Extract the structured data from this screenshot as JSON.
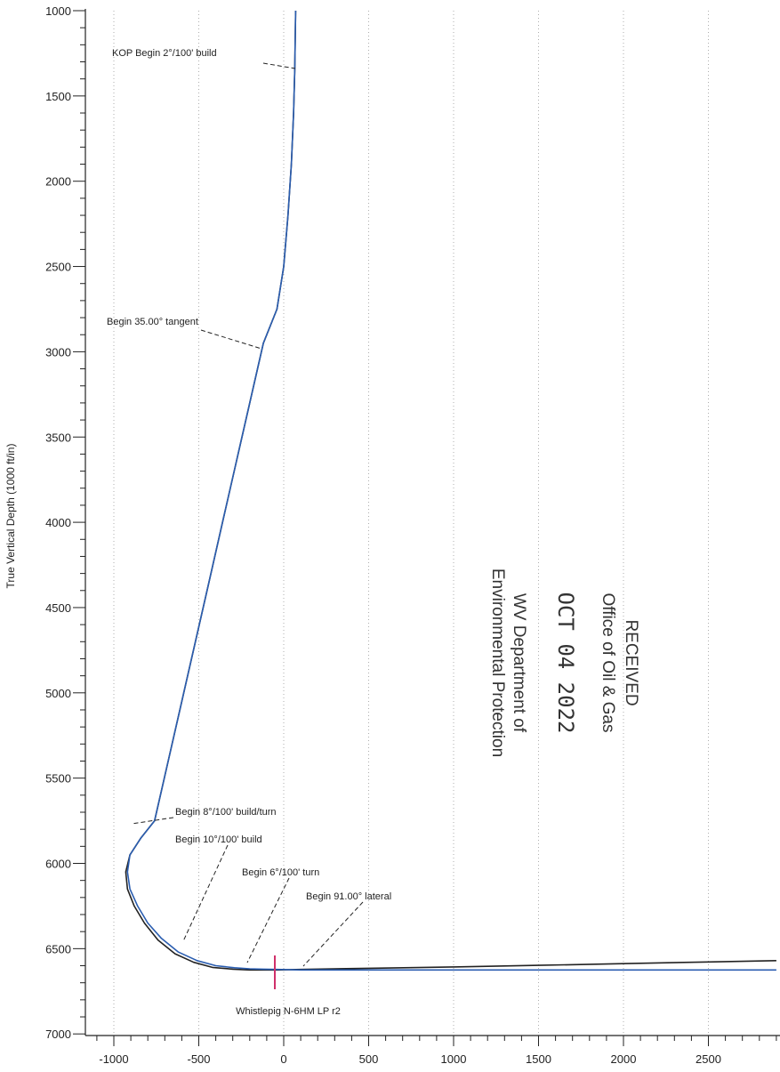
{
  "chart_data": {
    "type": "line",
    "ylabel": "True Vertical Depth (1000 ft/in)",
    "xlabel": "",
    "xlim": [
      -1200,
      2900
    ],
    "ylim": [
      7000,
      1000
    ],
    "x_ticks": [
      -1000,
      -500,
      0,
      500,
      1000,
      1500,
      2000,
      2500
    ],
    "y_ticks": [
      1000,
      1500,
      2000,
      2500,
      3000,
      3500,
      4000,
      4500,
      5000,
      5500,
      6000,
      6500,
      7000
    ],
    "series": [
      {
        "color": "#222222",
        "x": [
          70,
          65,
          58,
          45,
          25,
          0,
          -40,
          -120,
          -200,
          -280,
          -360,
          -440,
          -520,
          -600,
          -680,
          -760,
          -840,
          -905,
          -930,
          -920,
          -880,
          -820,
          -740,
          -640,
          -530,
          -420,
          -300,
          -200,
          -120,
          -40,
          100,
          500,
          1000,
          1500,
          2000,
          2500,
          2900
        ],
        "y": [
          1000,
          1350,
          1600,
          1900,
          2200,
          2500,
          2750,
          2950,
          3300,
          3650,
          4000,
          4350,
          4700,
          5050,
          5400,
          5750,
          5850,
          5950,
          6050,
          6150,
          6250,
          6350,
          6450,
          6530,
          6580,
          6610,
          6620,
          6625,
          6625,
          6625,
          6622,
          6615,
          6607,
          6598,
          6588,
          6578,
          6570
        ]
      },
      {
        "color": "#2a5db0",
        "x": [
          70,
          65,
          58,
          45,
          25,
          0,
          -40,
          -120,
          -200,
          -280,
          -360,
          -440,
          -520,
          -600,
          -680,
          -760,
          -840,
          -905,
          -920,
          -905,
          -860,
          -800,
          -720,
          -620,
          -510,
          -400,
          -290,
          -200,
          -120,
          -40,
          100,
          500,
          1000,
          1500,
          2000,
          2500,
          2900
        ],
        "y": [
          1000,
          1350,
          1600,
          1900,
          2200,
          2500,
          2750,
          2950,
          3300,
          3650,
          4000,
          4350,
          4700,
          5050,
          5400,
          5750,
          5850,
          5950,
          6050,
          6150,
          6250,
          6350,
          6440,
          6520,
          6570,
          6600,
          6612,
          6618,
          6620,
          6622,
          6625,
          6625,
          6625,
          6625,
          6625,
          6625,
          6625
        ]
      }
    ],
    "annotations": [
      {
        "text": "KOP Begin 2°/100' build",
        "x": 60,
        "y": 1350
      },
      {
        "text": "Begin 35.00° tangent",
        "x": -140,
        "y": 2980
      },
      {
        "text": "Begin 8°/100' build/turn",
        "x": -910,
        "y": 5780
      },
      {
        "text": "Begin 10°/100' build",
        "x": -640,
        "y": 6520
      },
      {
        "text": "Begin 6°/100' turn",
        "x": -240,
        "y": 6630
      },
      {
        "text": "Begin 91.00° lateral",
        "x": 100,
        "y": 6625
      }
    ],
    "target_label": "Whistlepig N-6HM LP r2",
    "target_marker_color": "#d0306a",
    "stamp": {
      "line1": "RECEIVED",
      "line2": "Office of Oil & Gas",
      "date": "OCT 04 2022",
      "line4": "WV Department of",
      "line5": "Environmental Protection"
    }
  }
}
